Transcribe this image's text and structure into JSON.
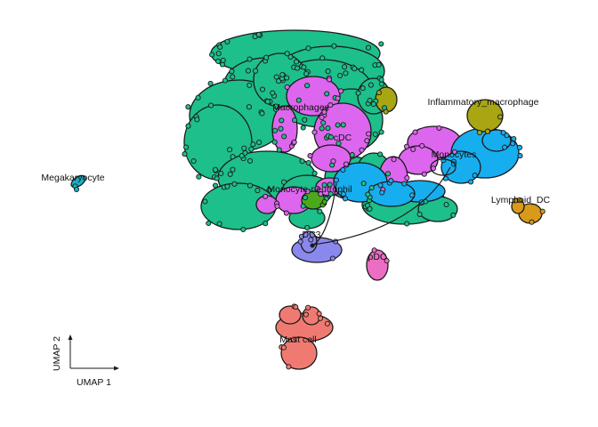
{
  "chart_data": {
    "type": "scatter",
    "title": "",
    "xlabel": "UMAP 1",
    "ylabel": "UMAP 2",
    "grid": false,
    "legend": "none",
    "clusters": [
      {
        "name": "Macrophages",
        "color": "#1dbf8b"
      },
      {
        "name": "cDC",
        "color": "#dd66ee"
      },
      {
        "name": "Monocytes",
        "color": "#17aef0"
      },
      {
        "name": "Inflammatory_macrophage",
        "color": "#a8a612"
      },
      {
        "name": "Monocyte-neutrophil",
        "color": "#4aaa1a"
      },
      {
        "name": "pDC",
        "color": "#ec6ec4"
      },
      {
        "name": "DC3",
        "color": "#8a88ec"
      },
      {
        "name": "Lymphoid_DC",
        "color": "#d9991a"
      },
      {
        "name": "Megakaryocyte",
        "color": "#19b1c6"
      },
      {
        "name": "Mast cell",
        "color": "#f07a72"
      }
    ]
  }
}
